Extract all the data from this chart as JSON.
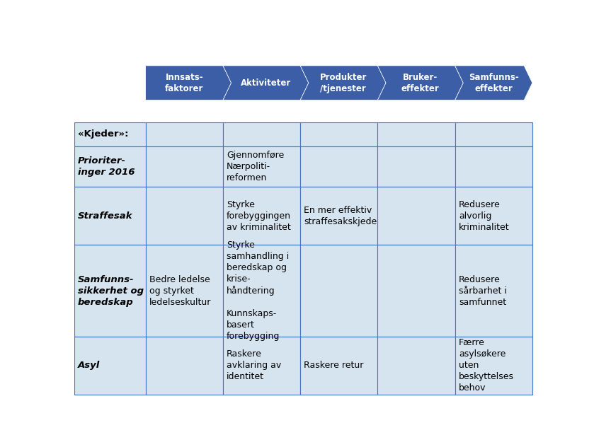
{
  "arrow_labels": [
    "Innsats-\nfaktorer",
    "Aktiviteter",
    "Produkter\n/tjenester",
    "Bruker-\neffekter",
    "Samfunns-\neffekter"
  ],
  "arrow_color": "#3B5EA6",
  "arrow_text_color": "#FFFFFF",
  "table_bg": "#D6E4F0",
  "table_border_color": "#4472C4",
  "header_row_label": "«Kjeder»:",
  "rows": [
    {
      "label": "Prioriter-\ninger 2016",
      "cells": [
        "",
        "Gjennomføre\nNærpoliti-\nreformen",
        "",
        "",
        ""
      ]
    },
    {
      "label": "Straffesak",
      "cells": [
        "",
        "Styrke\nforebyggingen\nav kriminalitet",
        "En mer effektiv\nstraffesakskjede",
        "",
        "Redusere\nalvorlig\nkriminalitet"
      ]
    },
    {
      "label": "Samfunns-\nsikkerhet og\nberedskap",
      "cells": [
        "Bedre ledelse\nog styrket\nledelseskultur",
        "Styrke\nsamhandling i\nberedskap og\nkrise-\nhåndtering\n\nKunnskaps-\nbasert\nforebygging",
        "",
        "",
        "Redusere\nsårbarhet i\nsamfunnet"
      ]
    },
    {
      "label": "Asyl",
      "cells": [
        "",
        "Raskere\navklaring av\nidentitet",
        "Raskere retur",
        "",
        "Færre\nasylsøkere\nuten\nbeskyttelses\nbehov"
      ]
    }
  ],
  "fig_width": 8.39,
  "fig_height": 6.32
}
